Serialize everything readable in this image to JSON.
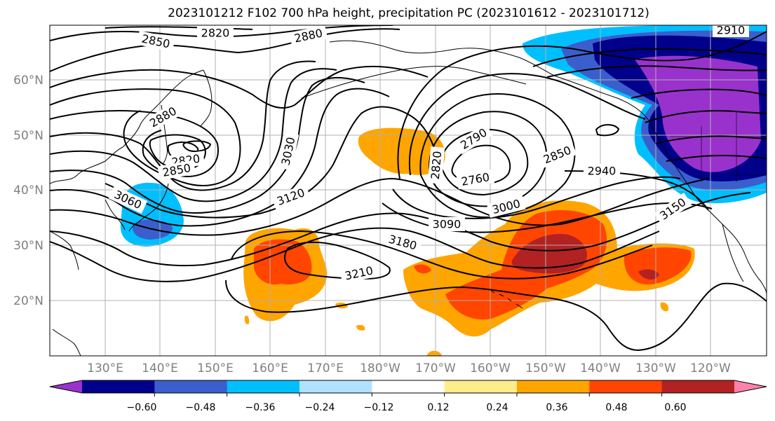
{
  "title": "2023101212 F102 700 hPa height, precipitation PC (2023101612 - 2023101712)",
  "lat_labels": [
    "60°N",
    "50°N",
    "40°N",
    "30°N",
    "20°N"
  ],
  "lon_labels": [
    "130°E",
    "140°E",
    "150°E",
    "160°E",
    "170°E",
    "180°W",
    "170°W",
    "160°W",
    "150°W",
    "140°W",
    "130°W",
    "120°W"
  ],
  "contour_labels": [
    "2820",
    "2850",
    "2880",
    "2910",
    "2880",
    "2820",
    "2850",
    "2790",
    "2820",
    "2760",
    "2850",
    "2940",
    "3030",
    "3060",
    "3120",
    "3000",
    "3090",
    "3150",
    "3180",
    "3210"
  ],
  "colorbar": {
    "ticks": [
      "−0.60",
      "−0.48",
      "−0.36",
      "−0.24",
      "−0.12",
      "0.12",
      "0.24",
      "0.36",
      "0.48",
      "0.60"
    ],
    "colors": [
      "#9932cc",
      "#00008b",
      "#3a5fcd",
      "#00bfff",
      "#b0e2ff",
      "#ffffff",
      "#ffec8b",
      "#ffa500",
      "#ff4500",
      "#b22222",
      "#ff82ab"
    ]
  }
}
